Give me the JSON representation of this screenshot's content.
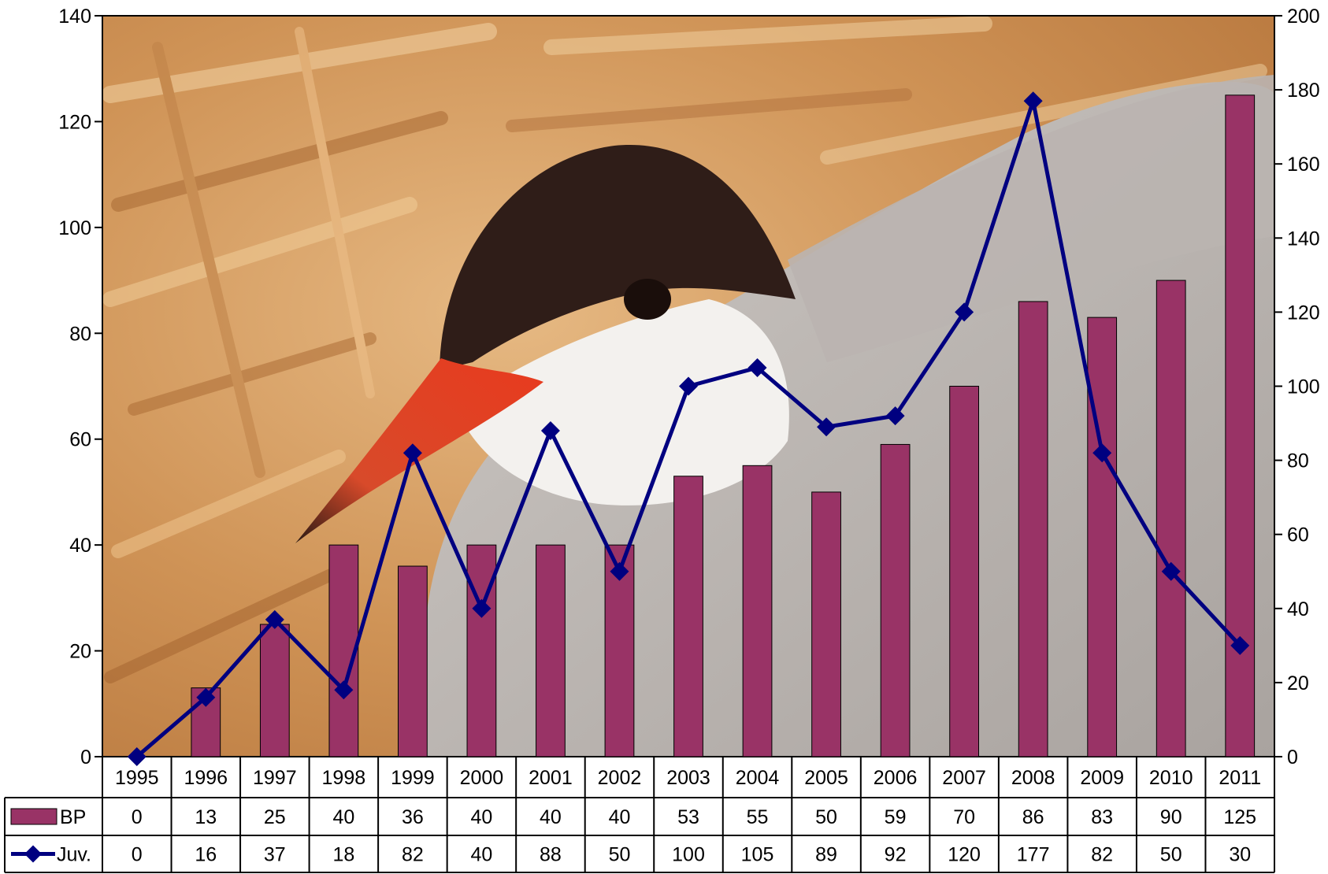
{
  "chart_data": {
    "type": "bar+line",
    "categories": [
      "1995",
      "1996",
      "1997",
      "1998",
      "1999",
      "2000",
      "2001",
      "2002",
      "2003",
      "2004",
      "2005",
      "2006",
      "2007",
      "2008",
      "2009",
      "2010",
      "2011"
    ],
    "series": [
      {
        "name": "BP",
        "type": "bar",
        "axis": "left",
        "color": "#993366",
        "values": [
          0,
          13,
          25,
          40,
          36,
          40,
          40,
          40,
          53,
          55,
          50,
          59,
          70,
          86,
          83,
          90,
          125
        ]
      },
      {
        "name": "Juv.",
        "type": "line",
        "axis": "right",
        "color": "#000080",
        "marker": "diamond",
        "values": [
          0,
          16,
          37,
          18,
          82,
          40,
          88,
          50,
          100,
          105,
          89,
          92,
          120,
          177,
          82,
          50,
          30
        ]
      }
    ],
    "y_left": {
      "min": 0,
      "max": 140,
      "ticks": [
        "0",
        "20",
        "40",
        "60",
        "80",
        "100",
        "120",
        "140"
      ]
    },
    "y_right": {
      "min": 0,
      "max": 200,
      "ticks": [
        "0",
        "20",
        "40",
        "60",
        "80",
        "100",
        "120",
        "140",
        "160",
        "180",
        "200"
      ]
    },
    "data_table": true,
    "background": "photo-tern-on-reeds"
  }
}
